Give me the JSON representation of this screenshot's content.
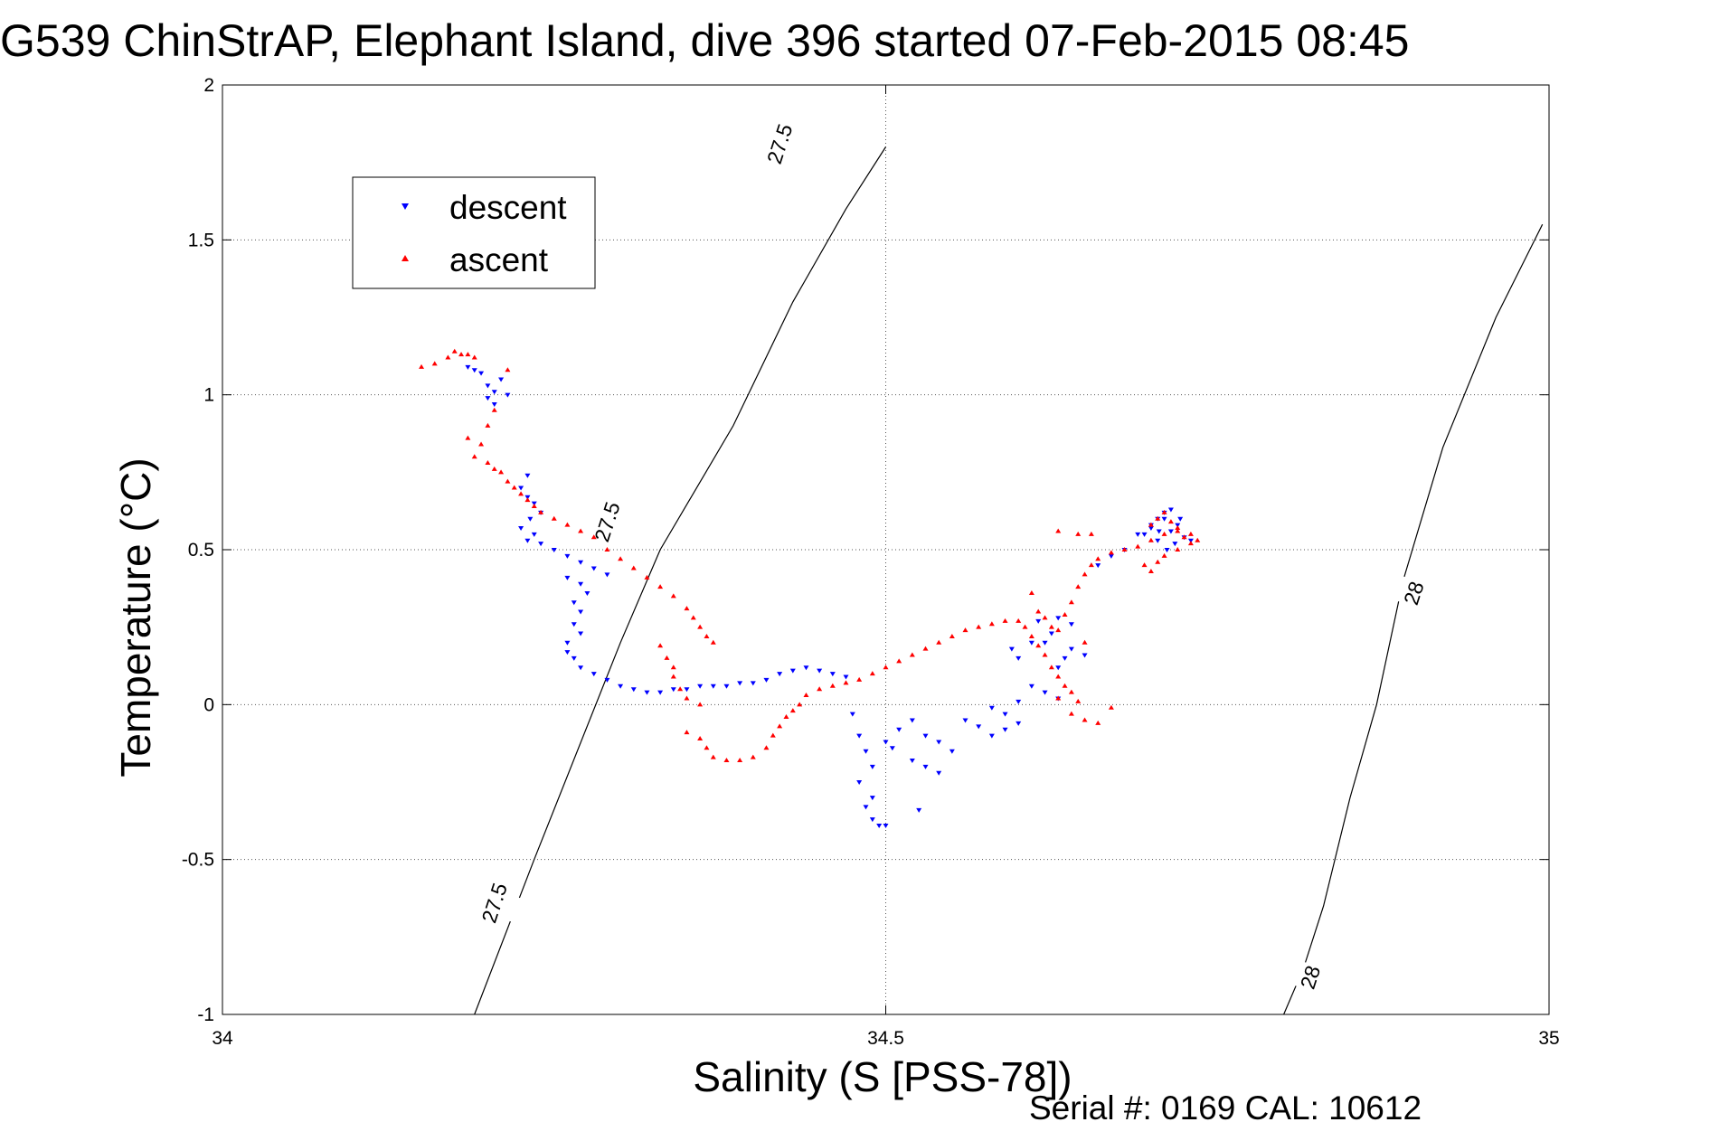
{
  "figure": {
    "title": "G539 ChinStrAP, Elephant Island, dive 396 started 07-Feb-2015 08:45",
    "serial_text": "Serial #: 0169 CAL: 10612"
  },
  "chart_data": {
    "type": "scatter",
    "title": "G539 ChinStrAP, Elephant Island, dive 396 started 07-Feb-2015 08:45",
    "xlabel": "Salinity (S [PSS-78])",
    "ylabel": "Temperature (°C)",
    "xlim": [
      34,
      35
    ],
    "ylim": [
      -1,
      2
    ],
    "xticks": [
      34,
      34.5,
      35
    ],
    "xtick_labels": [
      "34",
      "34.5",
      "35"
    ],
    "yticks": [
      -1,
      -0.5,
      0,
      0.5,
      1,
      1.5,
      2
    ],
    "ytick_labels": [
      "-1",
      "-0.5",
      "0",
      "0.5",
      "1",
      "1.5",
      "2"
    ],
    "grid": true,
    "legend_position": "top-left",
    "series": [
      {
        "name": "descent",
        "color": "#0000ff",
        "marker": "triangle-down",
        "points": [
          [
            34.185,
            1.09
          ],
          [
            34.19,
            1.08
          ],
          [
            34.195,
            1.07
          ],
          [
            34.2,
            1.03
          ],
          [
            34.205,
            1.01
          ],
          [
            34.2,
            0.99
          ],
          [
            34.21,
            1.05
          ],
          [
            34.215,
            1.0
          ],
          [
            34.205,
            0.97
          ],
          [
            34.23,
            0.74
          ],
          [
            34.225,
            0.7
          ],
          [
            34.23,
            0.67
          ],
          [
            34.235,
            0.65
          ],
          [
            34.24,
            0.62
          ],
          [
            34.232,
            0.6
          ],
          [
            34.225,
            0.57
          ],
          [
            34.235,
            0.55
          ],
          [
            34.23,
            0.53
          ],
          [
            34.24,
            0.52
          ],
          [
            34.25,
            0.5
          ],
          [
            34.26,
            0.48
          ],
          [
            34.27,
            0.46
          ],
          [
            34.28,
            0.44
          ],
          [
            34.29,
            0.42
          ],
          [
            34.26,
            0.41
          ],
          [
            34.27,
            0.39
          ],
          [
            34.275,
            0.36
          ],
          [
            34.265,
            0.33
          ],
          [
            34.27,
            0.3
          ],
          [
            34.265,
            0.26
          ],
          [
            34.27,
            0.23
          ],
          [
            34.26,
            0.2
          ],
          [
            34.26,
            0.17
          ],
          [
            34.265,
            0.15
          ],
          [
            34.27,
            0.12
          ],
          [
            34.28,
            0.1
          ],
          [
            34.29,
            0.08
          ],
          [
            34.3,
            0.06
          ],
          [
            34.31,
            0.05
          ],
          [
            34.32,
            0.04
          ],
          [
            34.33,
            0.04
          ],
          [
            34.34,
            0.05
          ],
          [
            34.35,
            0.05
          ],
          [
            34.36,
            0.06
          ],
          [
            34.37,
            0.06
          ],
          [
            34.38,
            0.06
          ],
          [
            34.39,
            0.07
          ],
          [
            34.4,
            0.07
          ],
          [
            34.41,
            0.08
          ],
          [
            34.42,
            0.1
          ],
          [
            34.43,
            0.11
          ],
          [
            34.44,
            0.12
          ],
          [
            34.45,
            0.11
          ],
          [
            34.46,
            0.1
          ],
          [
            34.47,
            0.09
          ],
          [
            34.475,
            -0.03
          ],
          [
            34.48,
            -0.1
          ],
          [
            34.485,
            -0.15
          ],
          [
            34.49,
            -0.2
          ],
          [
            34.48,
            -0.25
          ],
          [
            34.49,
            -0.3
          ],
          [
            34.485,
            -0.33
          ],
          [
            34.49,
            -0.37
          ],
          [
            34.495,
            -0.39
          ],
          [
            34.5,
            -0.39
          ],
          [
            34.5,
            -0.12
          ],
          [
            34.505,
            -0.14
          ],
          [
            34.51,
            -0.08
          ],
          [
            34.52,
            -0.05
          ],
          [
            34.53,
            -0.1
          ],
          [
            34.54,
            -0.12
          ],
          [
            34.55,
            -0.15
          ],
          [
            34.52,
            -0.18
          ],
          [
            34.53,
            -0.2
          ],
          [
            34.54,
            -0.22
          ],
          [
            34.525,
            -0.34
          ],
          [
            34.56,
            -0.05
          ],
          [
            34.57,
            -0.07
          ],
          [
            34.58,
            -0.1
          ],
          [
            34.59,
            -0.08
          ],
          [
            34.6,
            -0.06
          ],
          [
            34.59,
            -0.03
          ],
          [
            34.58,
            -0.01
          ],
          [
            34.6,
            0.01
          ],
          [
            34.595,
            0.18
          ],
          [
            34.6,
            0.15
          ],
          [
            34.61,
            0.2
          ],
          [
            34.615,
            0.27
          ],
          [
            34.62,
            0.2
          ],
          [
            34.625,
            0.23
          ],
          [
            34.63,
            0.28
          ],
          [
            34.64,
            0.26
          ],
          [
            34.63,
            0.12
          ],
          [
            34.635,
            0.15
          ],
          [
            34.64,
            0.18
          ],
          [
            34.65,
            0.16
          ],
          [
            34.61,
            0.06
          ],
          [
            34.62,
            0.04
          ],
          [
            34.63,
            0.02
          ],
          [
            34.66,
            0.45
          ],
          [
            34.67,
            0.48
          ],
          [
            34.68,
            0.5
          ],
          [
            34.69,
            0.55
          ],
          [
            34.7,
            0.57
          ],
          [
            34.705,
            0.6
          ],
          [
            34.71,
            0.62
          ],
          [
            34.715,
            0.63
          ],
          [
            34.71,
            0.6
          ],
          [
            34.7,
            0.58
          ],
          [
            34.695,
            0.55
          ],
          [
            34.705,
            0.53
          ],
          [
            34.715,
            0.56
          ],
          [
            34.72,
            0.58
          ],
          [
            34.725,
            0.54
          ],
          [
            34.73,
            0.53
          ],
          [
            34.712,
            0.5
          ],
          [
            34.718,
            0.52
          ],
          [
            34.722,
            0.6
          ],
          [
            34.706,
            0.56
          ]
        ]
      },
      {
        "name": "ascent",
        "color": "#ff0000",
        "marker": "triangle-up",
        "points": [
          [
            34.15,
            1.09
          ],
          [
            34.16,
            1.1
          ],
          [
            34.17,
            1.12
          ],
          [
            34.175,
            1.14
          ],
          [
            34.18,
            1.13
          ],
          [
            34.185,
            1.13
          ],
          [
            34.19,
            1.12
          ],
          [
            34.215,
            1.08
          ],
          [
            34.205,
            0.95
          ],
          [
            34.2,
            0.9
          ],
          [
            34.185,
            0.86
          ],
          [
            34.195,
            0.84
          ],
          [
            34.19,
            0.8
          ],
          [
            34.2,
            0.78
          ],
          [
            34.205,
            0.76
          ],
          [
            34.21,
            0.75
          ],
          [
            34.215,
            0.72
          ],
          [
            34.22,
            0.7
          ],
          [
            34.225,
            0.68
          ],
          [
            34.23,
            0.66
          ],
          [
            34.235,
            0.64
          ],
          [
            34.24,
            0.62
          ],
          [
            34.25,
            0.6
          ],
          [
            34.26,
            0.58
          ],
          [
            34.27,
            0.56
          ],
          [
            34.28,
            0.54
          ],
          [
            34.29,
            0.5
          ],
          [
            34.3,
            0.47
          ],
          [
            34.31,
            0.44
          ],
          [
            34.32,
            0.41
          ],
          [
            34.33,
            0.38
          ],
          [
            34.34,
            0.35
          ],
          [
            34.35,
            0.31
          ],
          [
            34.355,
            0.28
          ],
          [
            34.36,
            0.25
          ],
          [
            34.365,
            0.22
          ],
          [
            34.37,
            0.2
          ],
          [
            34.33,
            0.19
          ],
          [
            34.335,
            0.15
          ],
          [
            34.34,
            0.12
          ],
          [
            34.34,
            0.09
          ],
          [
            34.345,
            0.05
          ],
          [
            34.35,
            0.02
          ],
          [
            34.36,
            0.0
          ],
          [
            34.35,
            -0.09
          ],
          [
            34.36,
            -0.11
          ],
          [
            34.365,
            -0.14
          ],
          [
            34.37,
            -0.17
          ],
          [
            34.38,
            -0.18
          ],
          [
            34.39,
            -0.18
          ],
          [
            34.4,
            -0.17
          ],
          [
            34.41,
            -0.14
          ],
          [
            34.415,
            -0.1
          ],
          [
            34.42,
            -0.07
          ],
          [
            34.425,
            -0.04
          ],
          [
            34.43,
            -0.02
          ],
          [
            34.435,
            0.0
          ],
          [
            34.44,
            0.03
          ],
          [
            34.45,
            0.05
          ],
          [
            34.46,
            0.06
          ],
          [
            34.47,
            0.07
          ],
          [
            34.48,
            0.08
          ],
          [
            34.49,
            0.1
          ],
          [
            34.5,
            0.12
          ],
          [
            34.51,
            0.14
          ],
          [
            34.52,
            0.16
          ],
          [
            34.53,
            0.18
          ],
          [
            34.54,
            0.2
          ],
          [
            34.55,
            0.22
          ],
          [
            34.56,
            0.24
          ],
          [
            34.57,
            0.25
          ],
          [
            34.58,
            0.26
          ],
          [
            34.59,
            0.27
          ],
          [
            34.6,
            0.27
          ],
          [
            34.605,
            0.25
          ],
          [
            34.61,
            0.22
          ],
          [
            34.615,
            0.19
          ],
          [
            34.62,
            0.16
          ],
          [
            34.625,
            0.12
          ],
          [
            34.63,
            0.09
          ],
          [
            34.635,
            0.06
          ],
          [
            34.64,
            0.04
          ],
          [
            34.645,
            0.01
          ],
          [
            34.64,
            -0.03
          ],
          [
            34.65,
            -0.05
          ],
          [
            34.66,
            -0.06
          ],
          [
            34.61,
            0.36
          ],
          [
            34.615,
            0.3
          ],
          [
            34.62,
            0.28
          ],
          [
            34.625,
            0.25
          ],
          [
            34.63,
            0.24
          ],
          [
            34.635,
            0.29
          ],
          [
            34.64,
            0.33
          ],
          [
            34.645,
            0.38
          ],
          [
            34.65,
            0.42
          ],
          [
            34.655,
            0.45
          ],
          [
            34.66,
            0.47
          ],
          [
            34.67,
            0.49
          ],
          [
            34.68,
            0.5
          ],
          [
            34.69,
            0.51
          ],
          [
            34.7,
            0.53
          ],
          [
            34.71,
            0.55
          ],
          [
            34.72,
            0.57
          ],
          [
            34.725,
            0.54
          ],
          [
            34.73,
            0.52
          ],
          [
            34.72,
            0.5
          ],
          [
            34.71,
            0.48
          ],
          [
            34.705,
            0.46
          ],
          [
            34.7,
            0.43
          ],
          [
            34.695,
            0.45
          ],
          [
            34.7,
            0.58
          ],
          [
            34.705,
            0.6
          ],
          [
            34.71,
            0.62
          ],
          [
            34.715,
            0.59
          ],
          [
            34.72,
            0.56
          ],
          [
            34.73,
            0.55
          ],
          [
            34.735,
            0.53
          ],
          [
            34.645,
            0.55
          ],
          [
            34.655,
            0.55
          ],
          [
            34.63,
            0.56
          ],
          [
            34.65,
            0.2
          ],
          [
            34.67,
            -0.01
          ],
          [
            34.63,
            0.02
          ]
        ]
      }
    ],
    "density_contours": [
      {
        "label": "27.5",
        "points": [
          [
            34.19,
            -1.0
          ],
          [
            34.235,
            -0.5
          ],
          [
            34.3,
            0.2
          ],
          [
            34.33,
            0.5
          ],
          [
            34.385,
            0.9
          ],
          [
            34.43,
            1.3
          ],
          [
            34.47,
            1.6
          ],
          [
            34.5,
            1.8
          ]
        ]
      },
      {
        "label": "28",
        "points": [
          [
            34.8,
            -1.0
          ],
          [
            34.815,
            -0.85
          ],
          [
            34.83,
            -0.65
          ],
          [
            34.85,
            -0.3
          ],
          [
            34.87,
            0.0
          ],
          [
            34.89,
            0.4
          ],
          [
            34.92,
            0.83
          ],
          [
            34.96,
            1.25
          ],
          [
            34.995,
            1.55
          ]
        ]
      }
    ],
    "contour_label_placements": [
      {
        "text": "27.5",
        "s": 34.42,
        "t": 1.81
      },
      {
        "text": "27.5",
        "s": 34.29,
        "t": 0.59
      },
      {
        "text": "27.5",
        "s": 34.205,
        "t": -0.64
      },
      {
        "text": "28",
        "s": 34.898,
        "t": 0.36
      },
      {
        "text": "28",
        "s": 34.82,
        "t": -0.88
      }
    ]
  }
}
